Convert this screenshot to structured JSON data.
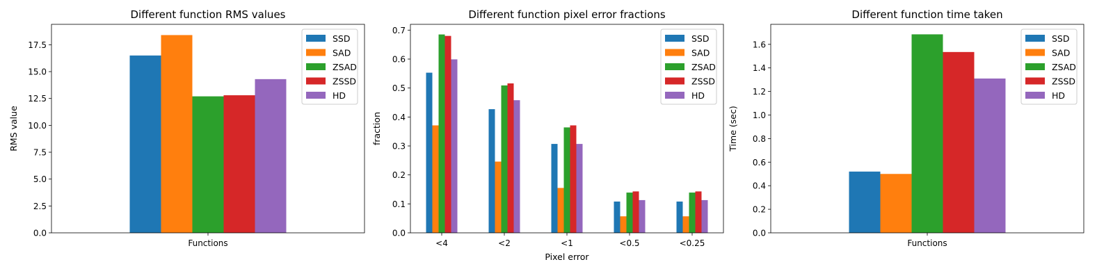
{
  "chart_data": [
    {
      "type": "bar",
      "title": "Different function RMS values",
      "xlabel": "",
      "ylabel": "RMS value",
      "categories": [
        "Functions"
      ],
      "series": [
        {
          "name": "SSD",
          "values": [
            16.5
          ]
        },
        {
          "name": "SAD",
          "values": [
            18.4
          ]
        },
        {
          "name": "ZSAD",
          "values": [
            12.7
          ]
        },
        {
          "name": "ZSSD",
          "values": [
            12.8
          ]
        },
        {
          "name": "HD",
          "values": [
            14.3
          ]
        }
      ],
      "ylim": [
        0,
        19.4
      ],
      "yticks": [
        0.0,
        2.5,
        5.0,
        7.5,
        10.0,
        12.5,
        15.0,
        17.5
      ],
      "ytick_labels": [
        "0.0",
        "2.5",
        "5.0",
        "7.5",
        "10.0",
        "12.5",
        "15.0",
        "17.5"
      ],
      "legend": "top-right",
      "grid": false
    },
    {
      "type": "bar",
      "title": "Different function pixel error fractions",
      "xlabel": "Pixel error",
      "ylabel": "fraction",
      "categories": [
        "<4",
        "<2",
        "<1",
        "<0.5",
        "<0.25"
      ],
      "series": [
        {
          "name": "SSD",
          "values": [
            0.553,
            0.427,
            0.307,
            0.108,
            0.108
          ]
        },
        {
          "name": "SAD",
          "values": [
            0.371,
            0.246,
            0.155,
            0.057,
            0.057
          ]
        },
        {
          "name": "ZSAD",
          "values": [
            0.685,
            0.509,
            0.364,
            0.139,
            0.139
          ]
        },
        {
          "name": "ZSSD",
          "values": [
            0.68,
            0.516,
            0.371,
            0.143,
            0.143
          ]
        },
        {
          "name": "HD",
          "values": [
            0.599,
            0.458,
            0.307,
            0.113,
            0.113
          ]
        }
      ],
      "ylim": [
        0,
        0.72
      ],
      "yticks": [
        0.0,
        0.1,
        0.2,
        0.3,
        0.4,
        0.5,
        0.6,
        0.7
      ],
      "ytick_labels": [
        "0.0",
        "0.1",
        "0.2",
        "0.3",
        "0.4",
        "0.5",
        "0.6",
        "0.7"
      ],
      "legend": "top-right",
      "grid": false
    },
    {
      "type": "bar",
      "title": "Different function time taken",
      "xlabel": "",
      "ylabel": "Time (sec)",
      "categories": [
        "Functions"
      ],
      "series": [
        {
          "name": "SSD",
          "values": [
            0.52
          ]
        },
        {
          "name": "SAD",
          "values": [
            0.5
          ]
        },
        {
          "name": "ZSAD",
          "values": [
            1.685
          ]
        },
        {
          "name": "ZSSD",
          "values": [
            1.535
          ]
        },
        {
          "name": "HD",
          "values": [
            1.31
          ]
        }
      ],
      "ylim": [
        0,
        1.77
      ],
      "yticks": [
        0.0,
        0.2,
        0.4,
        0.6,
        0.8,
        1.0,
        1.2,
        1.4,
        1.6
      ],
      "ytick_labels": [
        "0.0",
        "0.2",
        "0.4",
        "0.6",
        "0.8",
        "1.0",
        "1.2",
        "1.4",
        "1.6"
      ],
      "legend": "top-right",
      "grid": false
    }
  ],
  "colors": {
    "SSD": "#1f77b4",
    "SAD": "#ff7f0e",
    "ZSAD": "#2ca02c",
    "ZSSD": "#d62728",
    "HD": "#9467bd"
  }
}
